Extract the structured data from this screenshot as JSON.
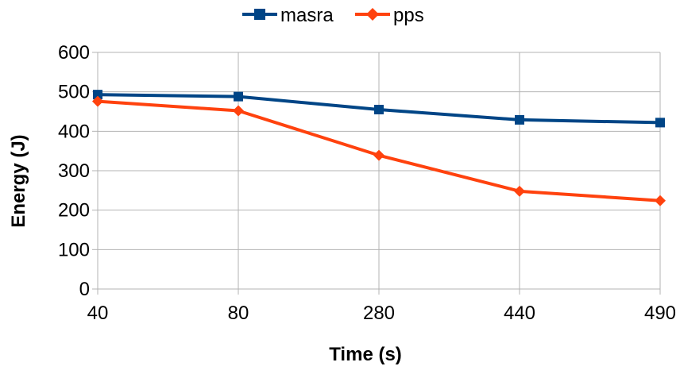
{
  "chart_data": {
    "type": "line",
    "categories": [
      "40",
      "80",
      "280",
      "440",
      "490"
    ],
    "xlabel": "Time (s)",
    "ylabel": "Energy (J)",
    "ylim": [
      0,
      600
    ],
    "yticks": [
      0,
      100,
      200,
      300,
      400,
      500,
      600
    ],
    "grid": true,
    "legend_position": "top-center",
    "series": [
      {
        "name": "masra",
        "color": "#004586",
        "marker": "square",
        "values": [
          493,
          488,
          455,
          429,
          422
        ]
      },
      {
        "name": "pps",
        "color": "#ff420e",
        "marker": "diamond",
        "values": [
          476,
          452,
          339,
          248,
          224
        ]
      }
    ]
  }
}
